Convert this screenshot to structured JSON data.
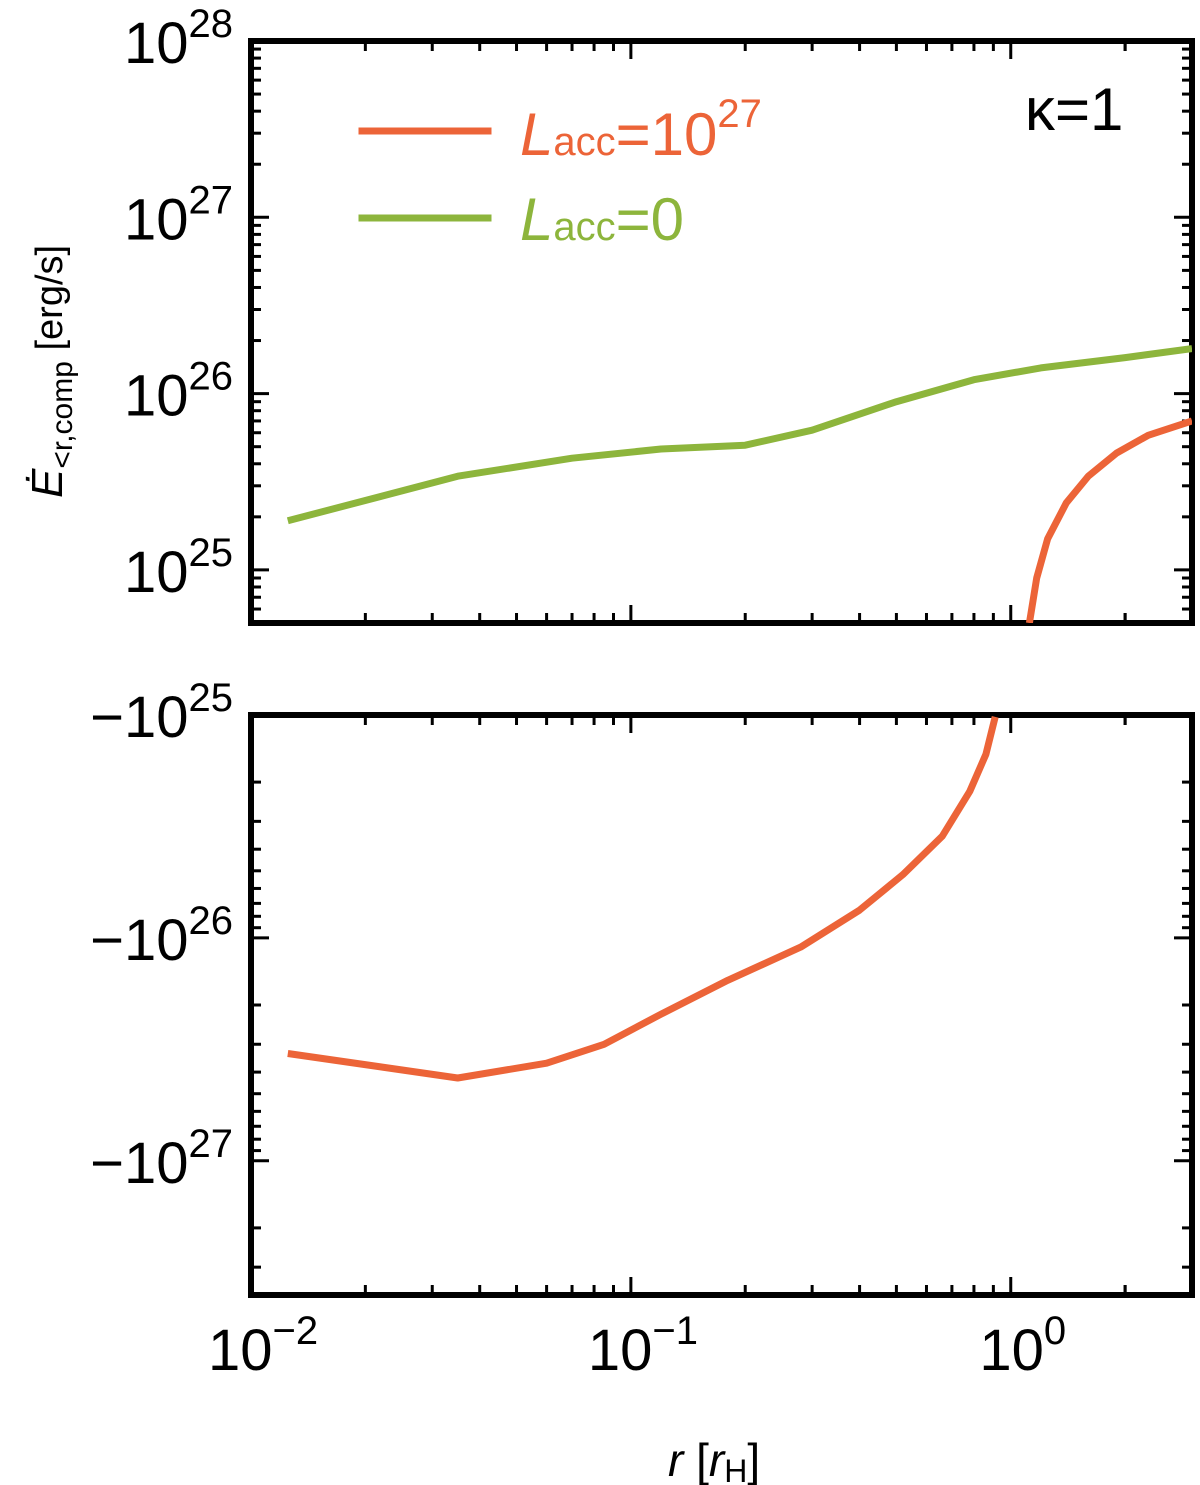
{
  "chart_data": {
    "type": "line",
    "x_scale": "log",
    "xlim": [
      0.01,
      3.0
    ],
    "x_ticks": [
      {
        "value": 0.01,
        "base": "10",
        "exp": "−2"
      },
      {
        "value": 0.1,
        "base": "10",
        "exp": "−1"
      },
      {
        "value": 1,
        "base": "10",
        "exp": "0"
      }
    ],
    "xlabel": {
      "var": "r",
      "open": " [",
      "unit": "r",
      "unit_sub": "H",
      "close": "]"
    },
    "ylabel": {
      "var": "Ė",
      "sub": "<r,comp",
      "unit": " [erg/s]"
    },
    "annotation": {
      "text": "κ=1"
    },
    "panels": [
      {
        "name": "positive",
        "y_scale": "log",
        "ylim": [
          5e+24,
          1e+28
        ],
        "y_ticks": [
          {
            "value": 1e+25,
            "label_base": "10",
            "label_exp": "25"
          },
          {
            "value": 1e+26,
            "label_base": "10",
            "label_exp": "26"
          },
          {
            "value": 1e+27,
            "label_base": "10",
            "label_exp": "27"
          },
          {
            "value": 1e+28,
            "label_base": "10",
            "label_exp": "28"
          }
        ]
      },
      {
        "name": "negative",
        "y_scale": "log-negative",
        "ylim": [
          -4e+27,
          -1e+25
        ],
        "y_ticks": [
          {
            "value": -1e+25,
            "label_base": "−10",
            "label_exp": "25"
          },
          {
            "value": -1e+26,
            "label_base": "−10",
            "label_exp": "26"
          },
          {
            "value": -1e+27,
            "label_base": "−10",
            "label_exp": "27"
          }
        ]
      }
    ],
    "series": [
      {
        "name": "Lacc=10^27",
        "legend": {
          "var": "L",
          "sub": "acc",
          "rest": "=10",
          "sup": "27"
        },
        "color": "#EC6438",
        "segments": [
          {
            "panel": "negative",
            "points": [
              [
                0.0125,
                -3.3e+26
              ],
              [
                0.035,
                -4.25e+26
              ],
              [
                0.06,
                -3.65e+26
              ],
              [
                0.085,
                -3e+26
              ],
              [
                0.12,
                -2.2e+26
              ],
              [
                0.18,
                -1.55e+26
              ],
              [
                0.28,
                -1.1e+26
              ],
              [
                0.4,
                -7.5e+25
              ],
              [
                0.52,
                -5.2e+25
              ],
              [
                0.66,
                -3.5e+25
              ],
              [
                0.78,
                -2.2e+25
              ],
              [
                0.86,
                -1.5e+25
              ],
              [
                0.91,
                -1.02e+25
              ]
            ]
          },
          {
            "panel": "positive",
            "points": [
              [
                1.12,
                5e+24
              ],
              [
                1.17,
                9e+24
              ],
              [
                1.25,
                1.5e+25
              ],
              [
                1.4,
                2.4e+25
              ],
              [
                1.6,
                3.4e+25
              ],
              [
                1.9,
                4.6e+25
              ],
              [
                2.3,
                5.8e+25
              ],
              [
                3.0,
                7e+25
              ]
            ]
          }
        ]
      },
      {
        "name": "Lacc=0",
        "legend": {
          "var": "L",
          "sub": "acc",
          "rest": "=0",
          "sup": ""
        },
        "color": "#8DB53C",
        "segments": [
          {
            "panel": "positive",
            "points": [
              [
                0.0125,
                1.9e+25
              ],
              [
                0.035,
                3.4e+25
              ],
              [
                0.07,
                4.3e+25
              ],
              [
                0.12,
                4.85e+25
              ],
              [
                0.2,
                5.1e+25
              ],
              [
                0.3,
                6.2e+25
              ],
              [
                0.5,
                9e+25
              ],
              [
                0.8,
                1.2e+26
              ],
              [
                1.2,
                1.4e+26
              ],
              [
                2.0,
                1.6e+26
              ],
              [
                3.0,
                1.8e+26
              ]
            ]
          }
        ]
      }
    ]
  }
}
